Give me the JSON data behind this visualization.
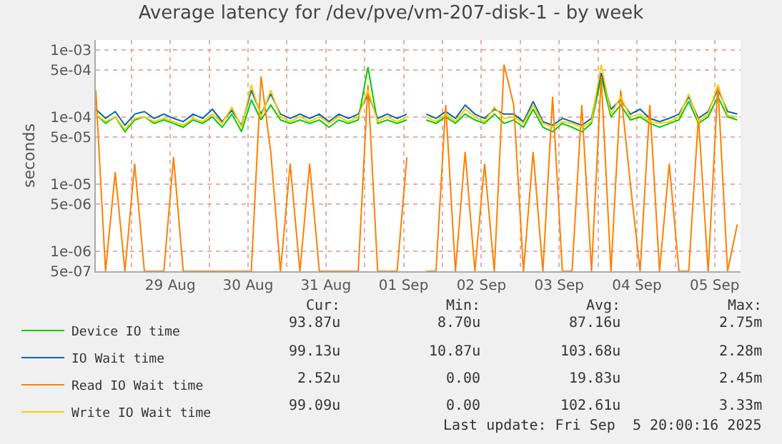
{
  "chart_data": {
    "type": "line",
    "title": "Average latency for /dev/pve/vm-207-disk-1 - by week",
    "ylabel": "seconds",
    "log": "y",
    "grid": true,
    "legend": "bottom",
    "marker": "none",
    "line_style": "solid",
    "xlim": [
      "2025-08-28T13:00",
      "2025-09-05T20:00"
    ],
    "xticks": [
      {
        "value": "2025-08-29T00:00",
        "label": null
      },
      {
        "value": "2025-08-29T12:00",
        "label": "29 Aug"
      },
      {
        "value": "2025-08-30T00:00",
        "label": null
      },
      {
        "value": "2025-08-30T12:00",
        "label": "30 Aug"
      },
      {
        "value": "2025-08-31T00:00",
        "label": null
      },
      {
        "value": "2025-08-31T12:00",
        "label": "31 Aug"
      },
      {
        "value": "2025-09-01T00:00",
        "label": null
      },
      {
        "value": "2025-09-01T12:00",
        "label": "01 Sep"
      },
      {
        "value": "2025-09-02T00:00",
        "label": null
      },
      {
        "value": "2025-09-02T12:00",
        "label": "02 Sep"
      },
      {
        "value": "2025-09-03T00:00",
        "label": null
      },
      {
        "value": "2025-09-03T12:00",
        "label": "03 Sep"
      },
      {
        "value": "2025-09-04T00:00",
        "label": null
      },
      {
        "value": "2025-09-04T12:00",
        "label": "04 Sep"
      },
      {
        "value": "2025-09-05T00:00",
        "label": null
      },
      {
        "value": "2025-09-05T12:00",
        "label": "05 Sep"
      }
    ],
    "ylim": [
      5e-07,
      0.0014
    ],
    "yticks": [
      {
        "value": 5e-07,
        "label": "5e-07"
      },
      {
        "value": 1e-06,
        "label": "1e-06"
      },
      {
        "value": 5e-06,
        "label": "5e-06"
      },
      {
        "value": 1e-05,
        "label": "1e-05"
      },
      {
        "value": 5e-05,
        "label": "5e-05"
      },
      {
        "value": 0.0001,
        "label": "1e-04"
      },
      {
        "value": 0.0005,
        "label": "5e-04"
      },
      {
        "value": 0.001,
        "label": "1e-03"
      }
    ],
    "x": [
      "2025-08-28T13:00",
      "2025-08-28T16:00",
      "2025-08-28T19:00",
      "2025-08-28T22:00",
      "2025-08-29T01:00",
      "2025-08-29T04:00",
      "2025-08-29T07:00",
      "2025-08-29T10:00",
      "2025-08-29T13:00",
      "2025-08-29T16:00",
      "2025-08-29T19:00",
      "2025-08-29T22:00",
      "2025-08-30T01:00",
      "2025-08-30T04:00",
      "2025-08-30T07:00",
      "2025-08-30T10:00",
      "2025-08-30T13:00",
      "2025-08-30T16:00",
      "2025-08-30T19:00",
      "2025-08-30T22:00",
      "2025-08-31T01:00",
      "2025-08-31T04:00",
      "2025-08-31T07:00",
      "2025-08-31T10:00",
      "2025-08-31T13:00",
      "2025-08-31T16:00",
      "2025-08-31T19:00",
      "2025-08-31T22:00",
      "2025-09-01T01:00",
      "2025-09-01T04:00",
      "2025-09-01T07:00",
      "2025-09-01T10:00",
      "2025-09-01T13:00",
      "2025-09-01T16:00",
      "2025-09-01T19:00",
      "2025-09-01T22:00",
      "2025-09-02T01:00",
      "2025-09-02T04:00",
      "2025-09-02T07:00",
      "2025-09-02T10:00",
      "2025-09-02T13:00",
      "2025-09-02T16:00",
      "2025-09-02T19:00",
      "2025-09-02T22:00",
      "2025-09-03T01:00",
      "2025-09-03T04:00",
      "2025-09-03T07:00",
      "2025-09-03T10:00",
      "2025-09-03T13:00",
      "2025-09-03T16:00",
      "2025-09-03T19:00",
      "2025-09-03T22:00",
      "2025-09-04T01:00",
      "2025-09-04T04:00",
      "2025-09-04T07:00",
      "2025-09-04T10:00",
      "2025-09-04T13:00",
      "2025-09-04T16:00",
      "2025-09-04T19:00",
      "2025-09-04T22:00",
      "2025-09-05T01:00",
      "2025-09-05T04:00",
      "2025-09-05T07:00",
      "2025-09-05T10:00",
      "2025-09-05T13:00",
      "2025-09-05T16:00",
      "2025-09-05T19:00"
    ],
    "series": [
      {
        "name": "Device IO time",
        "color": "#00cc00",
        "values": [
          0.00011,
          8e-05,
          0.0001,
          6e-05,
          9e-05,
          0.0001,
          8e-05,
          9e-05,
          8e-05,
          7e-05,
          9e-05,
          8e-05,
          0.0001,
          7e-05,
          0.00011,
          6e-05,
          0.00018,
          9e-05,
          0.00015,
          9e-05,
          8e-05,
          9e-05,
          8e-05,
          9e-05,
          7e-05,
          9e-05,
          8e-05,
          9e-05,
          0.00055,
          8e-05,
          9e-05,
          8e-05,
          9e-05,
          null,
          9e-05,
          8e-05,
          0.0001,
          8e-05,
          0.00011,
          9e-05,
          8e-05,
          0.00011,
          8e-05,
          9e-05,
          7e-05,
          0.00013,
          7e-05,
          6e-05,
          8e-05,
          7e-05,
          6e-05,
          8e-05,
          0.0004,
          0.0001,
          0.00015,
          9e-05,
          0.0001,
          8e-05,
          7e-05,
          8e-05,
          9e-05,
          0.00017,
          8e-05,
          0.0001,
          0.0002,
          0.0001,
          9e-05
        ]
      },
      {
        "name": "IO Wait time",
        "color": "#0066b3",
        "values": [
          0.00013,
          9.5e-05,
          0.00012,
          7.5e-05,
          0.00011,
          0.00012,
          9.5e-05,
          0.00011,
          9.5e-05,
          8.5e-05,
          0.00011,
          9.5e-05,
          0.00013,
          8.5e-05,
          0.000125,
          7.5e-05,
          0.00025,
          0.00011,
          0.00022,
          0.00011,
          9.5e-05,
          0.00011,
          9.5e-05,
          0.00011,
          8.5e-05,
          0.00011,
          9.5e-05,
          0.00011,
          0.00022,
          9.5e-05,
          0.00011,
          9.5e-05,
          0.00011,
          null,
          0.00011,
          9.5e-05,
          0.00012,
          9.5e-05,
          0.00015,
          0.00011,
          9.5e-05,
          0.00013,
          0.00011,
          0.00011,
          8.5e-05,
          0.00017,
          8.5e-05,
          7.5e-05,
          9.5e-05,
          8.5e-05,
          7.5e-05,
          9.5e-05,
          0.00045,
          0.00013,
          0.00018,
          0.00011,
          0.00013,
          9.5e-05,
          8.5e-05,
          9.5e-05,
          0.00011,
          0.0002,
          9.5e-05,
          0.00012,
          0.00026,
          0.00012,
          0.00011
        ]
      },
      {
        "name": "Read IO Wait time",
        "color": "#ff8000",
        "values": [
          0.00025,
          5e-07,
          1.5e-05,
          5e-07,
          2e-05,
          5e-07,
          5e-07,
          5e-07,
          2.5e-05,
          5e-07,
          5e-07,
          5e-07,
          5e-07,
          5e-07,
          5e-07,
          5e-07,
          5e-07,
          0.0004,
          3e-05,
          5e-07,
          2e-05,
          5e-07,
          2e-05,
          5e-07,
          5e-07,
          5e-07,
          5e-07,
          5e-07,
          0.0003,
          5e-07,
          5e-07,
          5e-07,
          2.5e-05,
          null,
          5e-07,
          5e-07,
          0.00015,
          5e-07,
          3e-05,
          5e-07,
          2e-05,
          5e-07,
          0.0006,
          0.00015,
          5e-07,
          3e-05,
          5e-07,
          0.0002,
          5e-07,
          5e-07,
          0.00015,
          5e-07,
          0.0004,
          5e-07,
          0.00025,
          1e-05,
          5e-07,
          0.00015,
          5e-07,
          2e-05,
          5e-07,
          5e-07,
          0.0001,
          5e-07,
          0.0003,
          5e-07,
          2.5e-06
        ]
      },
      {
        "name": "Write IO Wait time",
        "color": "#ffcc00",
        "values": [
          0.00011,
          8.5e-05,
          0.0001,
          6.5e-05,
          9.5e-05,
          0.0001,
          8.5e-05,
          9.5e-05,
          8.5e-05,
          7.5e-05,
          9.5e-05,
          8.5e-05,
          0.00011,
          8e-05,
          0.00014,
          7e-05,
          0.0003,
          0.0001,
          0.00025,
          0.0001,
          8.5e-05,
          0.0001,
          8.5e-05,
          0.0001,
          8e-05,
          0.0001,
          8.5e-05,
          0.0001,
          0.00025,
          8.5e-05,
          0.0001,
          8.5e-05,
          0.0001,
          null,
          0.0001,
          8.5e-05,
          0.00011,
          8.5e-05,
          0.00013,
          0.0001,
          8.5e-05,
          0.00014,
          9.5e-05,
          0.0001,
          8e-05,
          0.00015,
          8e-05,
          7e-05,
          8.5e-05,
          8e-05,
          7e-05,
          8.5e-05,
          0.0006,
          0.00011,
          0.0002,
          0.0001,
          0.00011,
          8.5e-05,
          8e-05,
          8.5e-05,
          0.0001,
          0.00022,
          8.5e-05,
          0.00011,
          0.0003,
          0.000105,
          0.0001
        ]
      }
    ],
    "annotations": [
      "Cur:",
      "Min:",
      "Avg:",
      "Max:",
      "93.87u",
      "8.70u",
      "87.16u",
      "2.75m",
      "99.13u",
      "10.87u",
      "103.68u",
      "2.28m",
      "2.52u",
      "0.00",
      "19.83u",
      "2.45m",
      "99.09u",
      "0.00",
      "102.61u",
      "3.33m",
      "Last update: Fri Sep  5 20:00:16 2025"
    ]
  }
}
